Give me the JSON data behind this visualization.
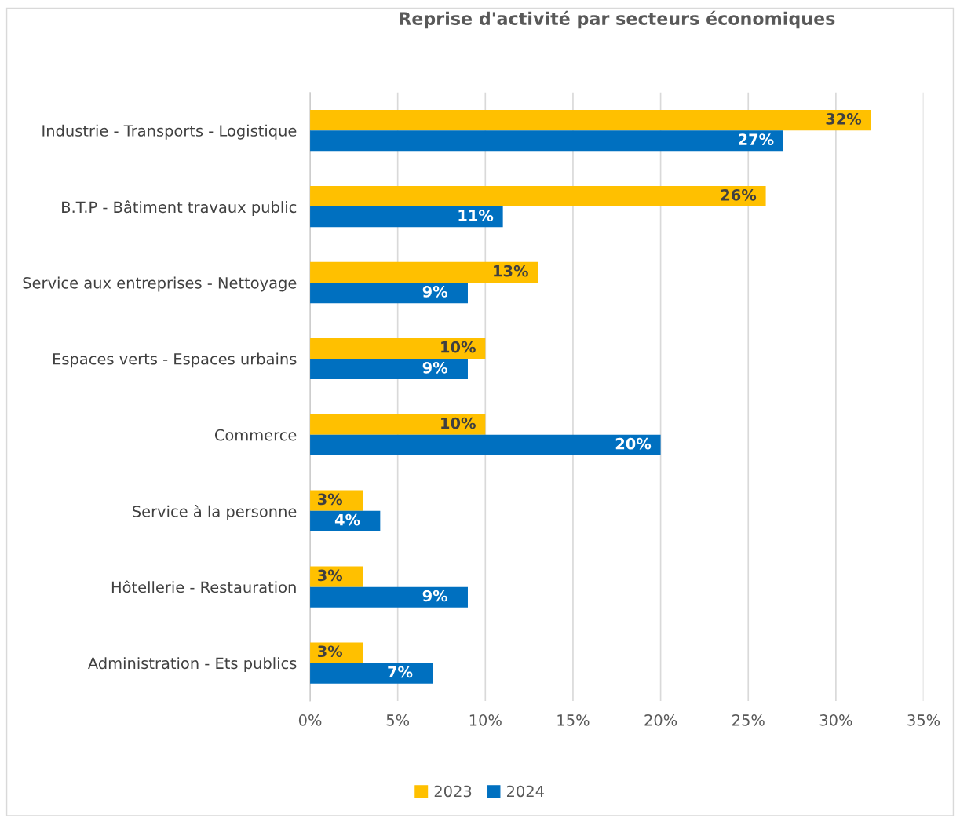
{
  "chart_data": {
    "type": "bar",
    "orientation": "horizontal",
    "title": "Reprise d'activité par secteurs économiques",
    "categories": [
      "Industrie - Transports - Logistique",
      "B.T.P - Bâtiment travaux public",
      "Service aux entreprises - Nettoyage",
      "Espaces verts - Espaces urbains",
      "Commerce",
      "Service à la personne",
      "Hôtellerie - Restauration",
      "Administration - Ets publics"
    ],
    "series": [
      {
        "name": "2023",
        "color": "#ffc000",
        "values": [
          32,
          26,
          13,
          10,
          10,
          3,
          3,
          3
        ],
        "value_labels": [
          "32%",
          "26%",
          "13%",
          "10%",
          "10%",
          "3%",
          "3%",
          "3%"
        ]
      },
      {
        "name": "2024",
        "color": "#0070c0",
        "values": [
          27,
          11,
          9,
          9,
          20,
          4,
          9,
          7
        ],
        "value_labels": [
          "27%",
          "11%",
          "9%",
          "9%",
          "20%",
          "4%",
          "9%",
          "7%"
        ]
      }
    ],
    "xlim": [
      0,
      35
    ],
    "xticks": [
      {
        "value": 0,
        "label": "0%"
      },
      {
        "value": 5,
        "label": "5%"
      },
      {
        "value": 10,
        "label": "10%"
      },
      {
        "value": 15,
        "label": "15%"
      },
      {
        "value": 20,
        "label": "20%"
      },
      {
        "value": 25,
        "label": "25%"
      },
      {
        "value": 30,
        "label": "30%"
      },
      {
        "value": 35,
        "label": "35%"
      }
    ],
    "grid": "x",
    "legend": "bottom"
  }
}
